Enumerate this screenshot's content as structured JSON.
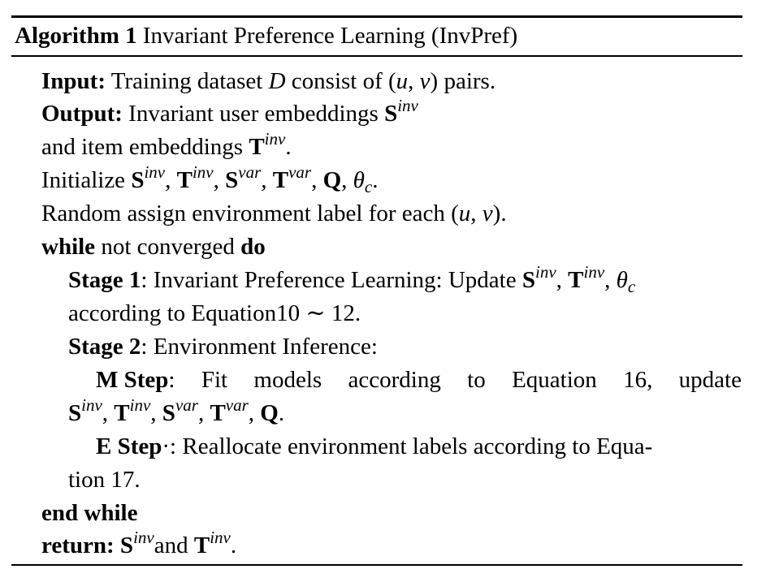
{
  "caption": {
    "label": "Algorithm 1",
    "title": "Invariant Preference Learning (InvPref)"
  },
  "algorithm": {
    "input_kw": "Input:",
    "input_a": "Training dataset ",
    "input_D": "D",
    "input_b": " consist of (",
    "input_u": "u",
    "input_comma": ", ",
    "input_v": "v",
    "input_c": ") pairs.",
    "output_kw": "Output:",
    "output_a": "Invariant user embeddings ",
    "output_b": "and item embeddings ",
    "output_end": ".",
    "init_a": "Initialize ",
    "init_end": ".",
    "random_a": "Random assign environment label for each (",
    "random_u": "u",
    "random_comma": ", ",
    "random_v": "v",
    "random_end": ").",
    "while_kw": "while",
    "while_text": " not converged ",
    "do_kw": "do",
    "stage1_kw": "Stage 1",
    "stage1_a": ": Invariant Preference Learning: Update ",
    "stage1_b": "according to Equation10 ∼ 12.",
    "stage2_kw": "Stage 2",
    "stage2_a": ": Environment Inference:",
    "mstep_kw": "M Step",
    "mstep_words": [
      ":",
      "Fit",
      "models",
      "according",
      "to",
      "Equation",
      "16,",
      "update"
    ],
    "mstep_end": ".",
    "estep_kw": "E Step",
    "estep_a": "·: Reallocate environment labels according to Equa-",
    "estep_b": "tion 17.",
    "endwhile_kw": "end while",
    "return_kw": "return:",
    "return_and": "and ",
    "return_end": ".",
    "sym": {
      "S": "S",
      "T": "T",
      "Q": "Q",
      "theta": "θ",
      "inv": "inv",
      "var": "var",
      "c": "c",
      "sep": ", "
    }
  }
}
